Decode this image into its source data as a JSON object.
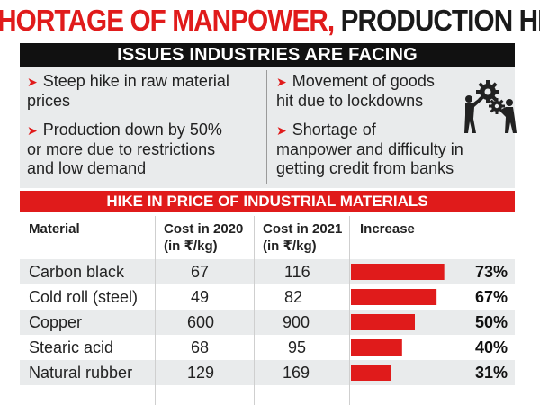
{
  "title": {
    "part1": "SHORTAGE OF MANPOWER,",
    "part2": "PRODUCTION HIT"
  },
  "issues": {
    "header": "ISSUES INDUSTRIES ARE FACING",
    "left": [
      [
        "Steep hike in raw material",
        "prices"
      ],
      [
        "Production down by 50%",
        "or more due to restrictions",
        "and low demand"
      ]
    ],
    "right": [
      [
        "Movement of goods",
        "hit due to lockdowns"
      ],
      [
        "Shortage of",
        "manpower and difficulty in",
        "getting credit from banks"
      ]
    ],
    "icon": "workers-gears-icon"
  },
  "colors": {
    "red": "#e01b1b",
    "black": "#111111",
    "shade": "#e9ebec"
  },
  "chart_data": {
    "type": "table",
    "title": "HIKE IN PRICE OF INDUSTRIAL MATERIALS",
    "columns": [
      "Material",
      "Cost in 2020",
      "(in ₹/kg)",
      "Cost in 2021",
      "(in ₹/kg)",
      "Increase"
    ],
    "rows": [
      {
        "material": "Carbon black",
        "cost_2020": "67",
        "cost_2021": "116",
        "increase": 73,
        "increase_label": "73%"
      },
      {
        "material": "Cold roll (steel)",
        "cost_2020": "49",
        "cost_2021": "82",
        "increase": 67,
        "increase_label": "67%"
      },
      {
        "material": "Copper",
        "cost_2020": "600",
        "cost_2021": "900",
        "increase": 50,
        "increase_label": "50%"
      },
      {
        "material": "Stearic acid",
        "cost_2020": "68",
        "cost_2021": "95",
        "increase": 40,
        "increase_label": "40%"
      },
      {
        "material": "Natural rubber",
        "cost_2020": "129",
        "cost_2021": "169",
        "increase": 31,
        "increase_label": "31%"
      }
    ]
  }
}
